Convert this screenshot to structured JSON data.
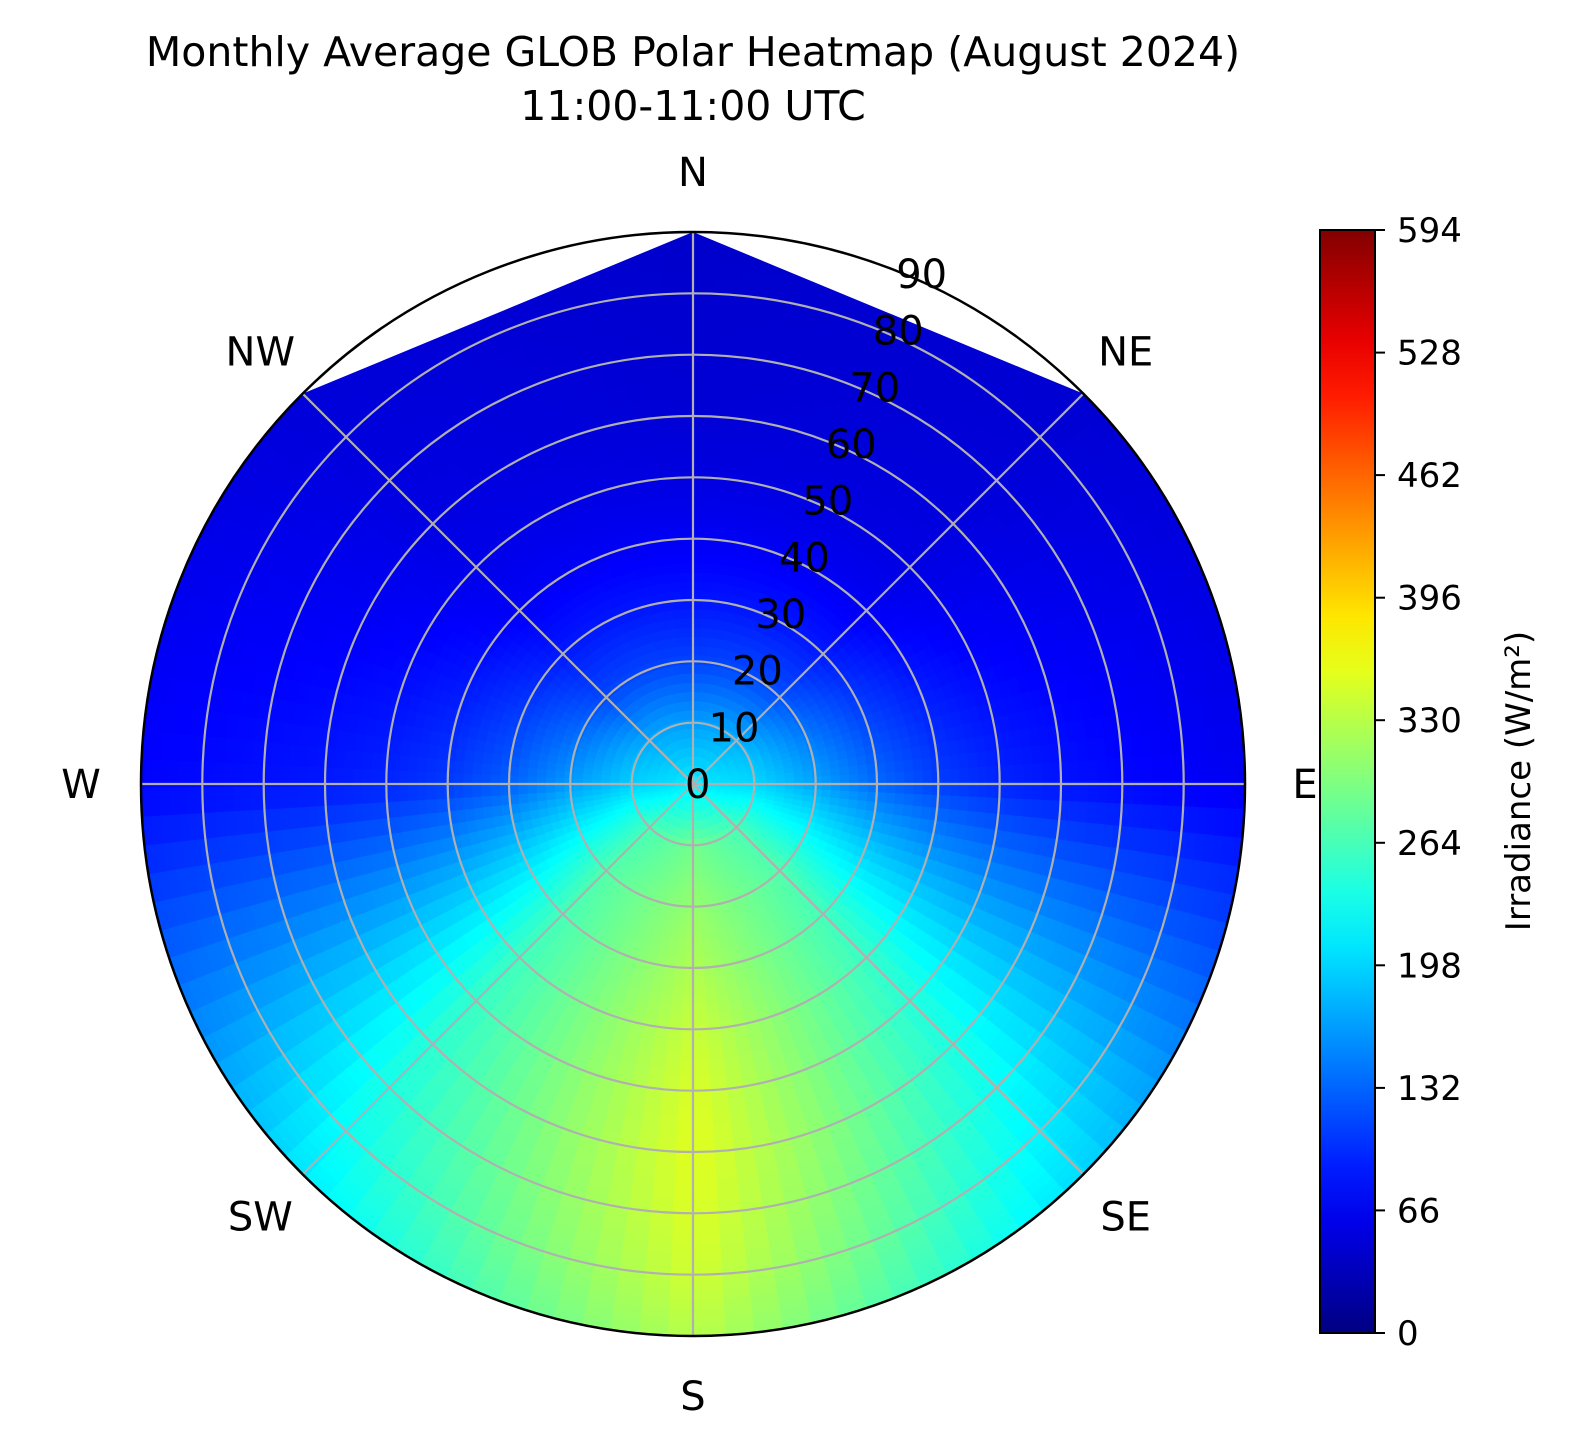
{
  "chart_data": {
    "type": "heatmap",
    "projection": "polar",
    "title": "Monthly Average GLOB Polar Heatmap (August 2024)",
    "subtitle": "11:00-11:00 UTC",
    "theta_direction": "clockwise",
    "theta_zero": "N",
    "compass_labels": [
      "N",
      "NE",
      "E",
      "SE",
      "S",
      "SW",
      "W",
      "NW"
    ],
    "radial_axis": {
      "ticks": [
        0,
        10,
        20,
        30,
        40,
        50,
        60,
        70,
        80,
        90
      ],
      "labels": [
        "0",
        "10",
        "20",
        "30",
        "40",
        "50",
        "60",
        "70",
        "80",
        "90"
      ],
      "range": [
        0,
        90
      ]
    },
    "grid": true,
    "colormap": "jet",
    "colorbar": {
      "label": "Irradiance (W/m²)",
      "range": [
        0,
        594
      ],
      "ticks": [
        0,
        66,
        132,
        198,
        264,
        330,
        396,
        462,
        528,
        594
      ],
      "tick_labels": [
        "0",
        "66",
        "132",
        "198",
        "264",
        "330",
        "396",
        "462",
        "528",
        "594"
      ],
      "placement": "right"
    },
    "azimuth_grid_deg": [
      0,
      45,
      90,
      135,
      180,
      225,
      270,
      315
    ],
    "field_samples": {
      "radius_values": [
        0,
        10,
        20,
        30,
        40,
        50,
        60,
        70,
        80,
        90
      ],
      "azimuth_values": [
        "N",
        "NE",
        "E",
        "SE",
        "S",
        "SW",
        "W",
        "NW"
      ],
      "irradiance": [
        [
          210,
          210,
          210,
          210,
          210,
          210,
          210,
          210
        ],
        [
          165,
          175,
          200,
          265,
          290,
          265,
          195,
          172
        ],
        [
          112,
          120,
          170,
          270,
          310,
          272,
          165,
          115
        ],
        [
          85,
          88,
          135,
          262,
          325,
          265,
          130,
          88
        ],
        [
          68,
          68,
          110,
          255,
          340,
          260,
          108,
          70
        ],
        [
          56,
          58,
          95,
          245,
          350,
          255,
          95,
          62
        ],
        [
          50,
          55,
          85,
          238,
          355,
          248,
          88,
          58
        ],
        [
          48,
          52,
          78,
          228,
          352,
          240,
          84,
          56
        ],
        [
          46,
          50,
          72,
          215,
          345,
          228,
          80,
          54
        ],
        [
          44,
          48,
          66,
          200,
          330,
          212,
          76,
          52
        ]
      ]
    },
    "masked_region": "beyond octagon spanning NW-N-NE near radius 90"
  }
}
